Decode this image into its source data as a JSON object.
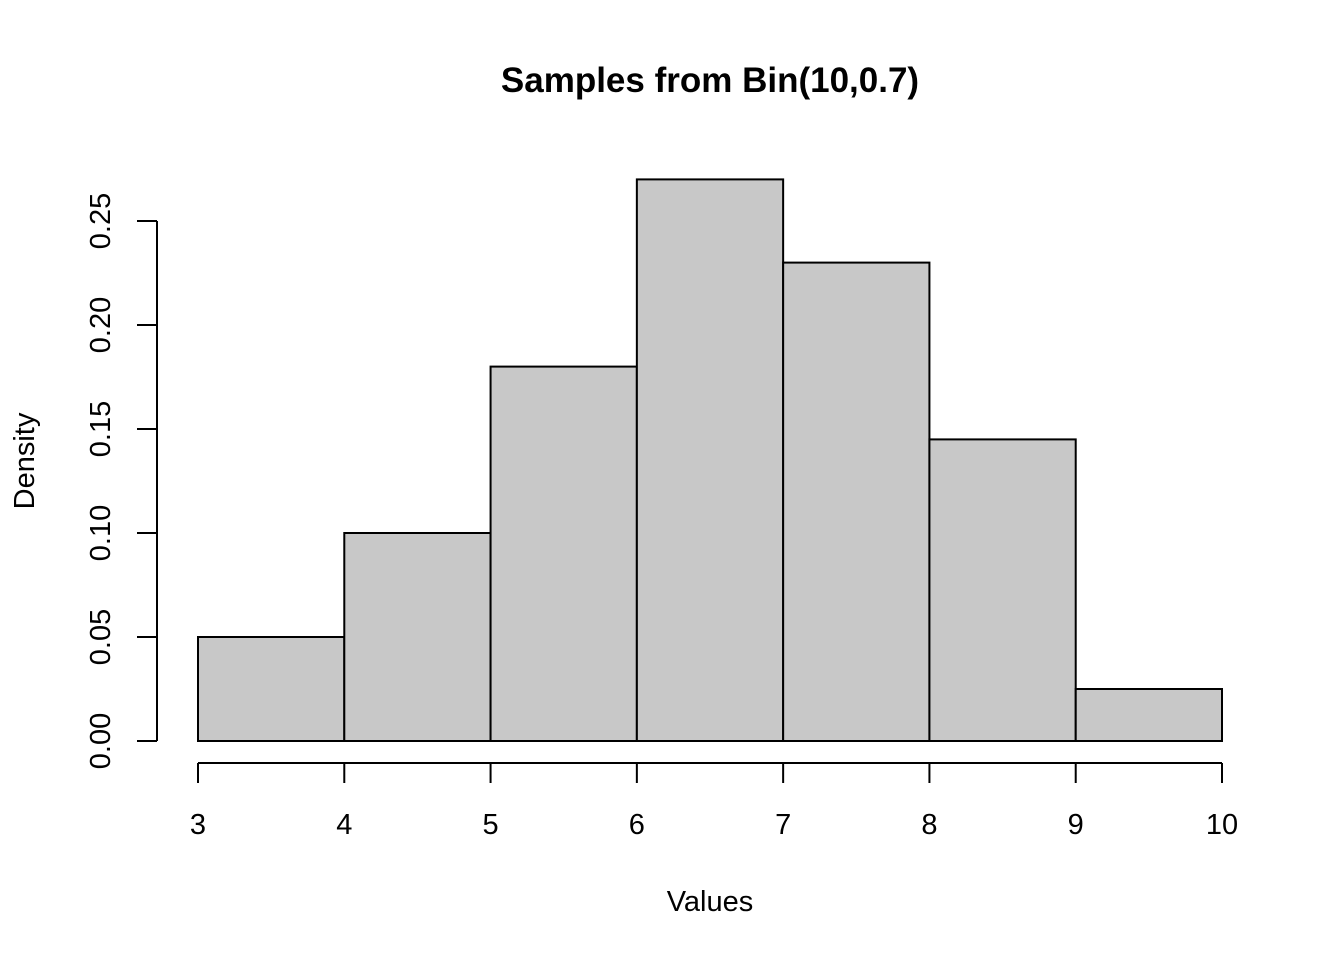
{
  "chart_data": {
    "type": "bar",
    "title": "Samples from Bin(10,0.7)",
    "xlabel": "Values",
    "ylabel": "Density",
    "bins": [
      {
        "start": 3,
        "end": 4,
        "value": 0.05
      },
      {
        "start": 4,
        "end": 5,
        "value": 0.1
      },
      {
        "start": 5,
        "end": 6,
        "value": 0.18
      },
      {
        "start": 6,
        "end": 7,
        "value": 0.27
      },
      {
        "start": 7,
        "end": 8,
        "value": 0.23
      },
      {
        "start": 8,
        "end": 9,
        "value": 0.145
      },
      {
        "start": 9,
        "end": 10,
        "value": 0.025
      }
    ],
    "x_ticks": [
      3,
      4,
      5,
      6,
      7,
      8,
      9,
      10
    ],
    "y_ticks": [
      "0.00",
      "0.05",
      "0.10",
      "0.15",
      "0.20",
      "0.25"
    ],
    "xlim": [
      3,
      10
    ],
    "ylim": [
      0,
      0.25
    ],
    "grid": false,
    "colors": {
      "bar_fill": "#c8c8c8",
      "bar_stroke": "#000000"
    }
  }
}
